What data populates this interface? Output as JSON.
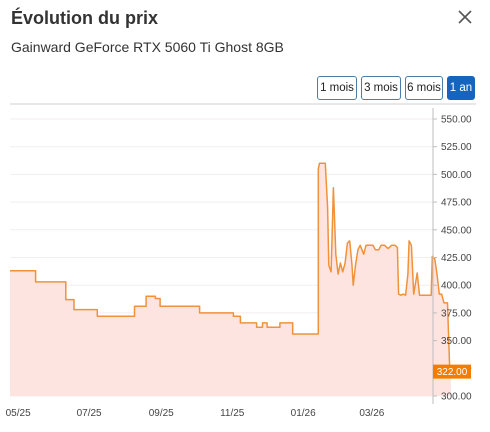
{
  "header": {
    "title": "Évolution du prix",
    "product": "Gainward GeForce RTX 5060 Ti Ghost 8GB",
    "close_icon": "close-icon"
  },
  "ranges": [
    {
      "label": "1 mois",
      "active": false
    },
    {
      "label": "3 mois",
      "active": false
    },
    {
      "label": "6 mois",
      "active": false
    },
    {
      "label": "1 an",
      "active": true
    }
  ],
  "chart_data": {
    "type": "area",
    "title": "",
    "xlabel": "",
    "ylabel": "",
    "ylim": [
      300,
      550
    ],
    "yticks": [
      "550.00",
      "525.00",
      "500.00",
      "475.00",
      "450.00",
      "425.00",
      "400.00",
      "375.00",
      "350.00",
      "325.00",
      "300.00"
    ],
    "xticks": [
      "05/25",
      "07/25",
      "09/25",
      "11/25",
      "01/26",
      "03/26"
    ],
    "xlim": [
      -7,
      354
    ],
    "xtick_positions": [
      0,
      61,
      123,
      184,
      245,
      304
    ],
    "line_color": "#f0923a",
    "fill_color": "#fde4e0",
    "current_price": "322.00",
    "current_price_color": "#f57c00",
    "points": [
      [
        -7,
        413
      ],
      [
        15,
        413
      ],
      [
        15,
        403
      ],
      [
        41,
        403
      ],
      [
        41,
        387
      ],
      [
        48,
        387
      ],
      [
        48,
        378
      ],
      [
        68,
        378
      ],
      [
        68,
        372
      ],
      [
        100,
        372
      ],
      [
        100,
        381
      ],
      [
        110,
        381
      ],
      [
        110,
        390
      ],
      [
        118,
        390
      ],
      [
        118,
        388
      ],
      [
        122,
        388
      ],
      [
        122,
        381
      ],
      [
        156,
        381
      ],
      [
        156,
        375
      ],
      [
        185,
        375
      ],
      [
        185,
        372
      ],
      [
        191,
        372
      ],
      [
        191,
        366
      ],
      [
        205,
        366
      ],
      [
        205,
        362
      ],
      [
        210,
        362
      ],
      [
        210,
        366
      ],
      [
        214,
        366
      ],
      [
        214,
        362
      ],
      [
        225,
        362
      ],
      [
        225,
        366
      ],
      [
        236,
        366
      ],
      [
        236,
        356
      ],
      [
        258,
        356
      ],
      [
        258,
        505
      ],
      [
        259,
        510
      ],
      [
        264,
        510
      ],
      [
        266,
        470
      ],
      [
        267,
        418
      ],
      [
        269,
        412
      ],
      [
        271,
        488
      ],
      [
        273,
        428
      ],
      [
        275,
        410
      ],
      [
        277,
        420
      ],
      [
        279,
        412
      ],
      [
        281,
        420
      ],
      [
        283,
        438
      ],
      [
        285,
        440
      ],
      [
        287,
        418
      ],
      [
        288,
        400
      ],
      [
        290,
        418
      ],
      [
        292,
        432
      ],
      [
        294,
        436
      ],
      [
        297,
        428
      ],
      [
        299,
        436
      ],
      [
        305,
        436
      ],
      [
        307,
        432
      ],
      [
        310,
        432
      ],
      [
        312,
        436
      ],
      [
        315,
        436
      ],
      [
        318,
        433
      ],
      [
        321,
        436
      ],
      [
        324,
        436
      ],
      [
        326,
        434
      ],
      [
        327,
        392
      ],
      [
        329,
        391
      ],
      [
        331,
        392
      ],
      [
        333,
        391
      ],
      [
        335,
        410
      ],
      [
        336,
        440
      ],
      [
        338,
        436
      ],
      [
        340,
        392
      ],
      [
        343,
        411
      ],
      [
        345,
        391
      ],
      [
        355,
        391
      ],
      [
        356,
        426
      ],
      [
        358,
        424
      ],
      [
        360,
        410
      ],
      [
        362,
        392
      ],
      [
        364,
        392
      ],
      [
        366,
        384
      ],
      [
        369,
        384
      ],
      [
        371,
        322
      ],
      [
        372,
        322
      ]
    ]
  }
}
